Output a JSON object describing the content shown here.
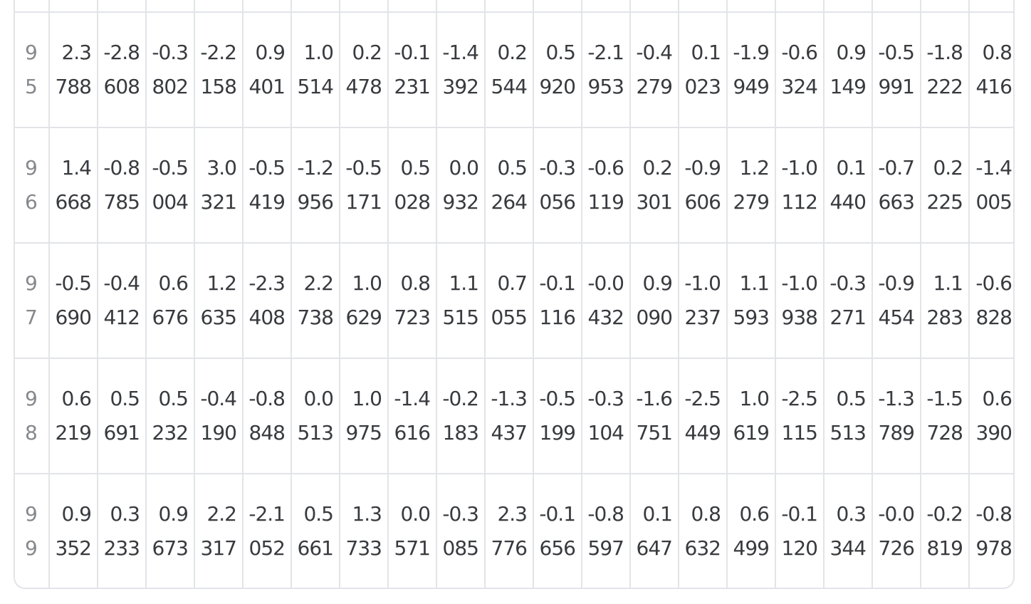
{
  "table": {
    "rows": [
      {
        "index": "95",
        "cells": [
          "2.3788",
          "-2.8608",
          "-0.3802",
          "-2.2158",
          "0.9401",
          "1.0514",
          "0.2478",
          "-0.1231",
          "-1.4392",
          "0.2544",
          "0.5920",
          "-2.1953",
          "-0.4279",
          "0.1023",
          "-1.9949",
          "-0.6324",
          "0.9149",
          "-0.5991",
          "-1.8222",
          "0.8416"
        ]
      },
      {
        "index": "96",
        "cells": [
          "1.4668",
          "-0.8785",
          "-0.5004",
          "3.0321",
          "-0.5419",
          "-1.2956",
          "-0.5171",
          "0.5028",
          "0.0932",
          "0.5264",
          "-0.3056",
          "-0.6119",
          "0.2301",
          "-0.9606",
          "1.2279",
          "-1.0112",
          "0.1440",
          "-0.7663",
          "0.2225",
          "-1.4005"
        ]
      },
      {
        "index": "97",
        "cells": [
          "-0.5690",
          "-0.4412",
          "0.6676",
          "1.2635",
          "-2.3408",
          "2.2738",
          "1.0629",
          "0.8723",
          "1.1515",
          "0.7055",
          "-0.1116",
          "-0.0432",
          "0.9090",
          "-1.0237",
          "1.1593",
          "-1.0938",
          "-0.3271",
          "-0.9454",
          "1.1283",
          "-0.6828"
        ]
      },
      {
        "index": "98",
        "cells": [
          "0.6219",
          "0.5691",
          "0.5232",
          "-0.4190",
          "-0.8848",
          "0.0513",
          "1.0975",
          "-1.4616",
          "-0.2183",
          "-1.3437",
          "-0.5199",
          "-0.3104",
          "-1.6751",
          "-2.5449",
          "1.0619",
          "-2.5115",
          "0.5513",
          "-1.3789",
          "-1.5728",
          "0.6390"
        ]
      },
      {
        "index": "99",
        "cells": [
          "0.9352",
          "0.3233",
          "0.9673",
          "2.2317",
          "-2.1052",
          "0.5661",
          "1.3733",
          "0.0571",
          "-0.3085",
          "2.3776",
          "-0.1656",
          "-0.8597",
          "0.1647",
          "0.8632",
          "0.6499",
          "-0.1120",
          "0.3344",
          "-0.0726",
          "-0.2819",
          "-0.8978"
        ]
      }
    ]
  }
}
